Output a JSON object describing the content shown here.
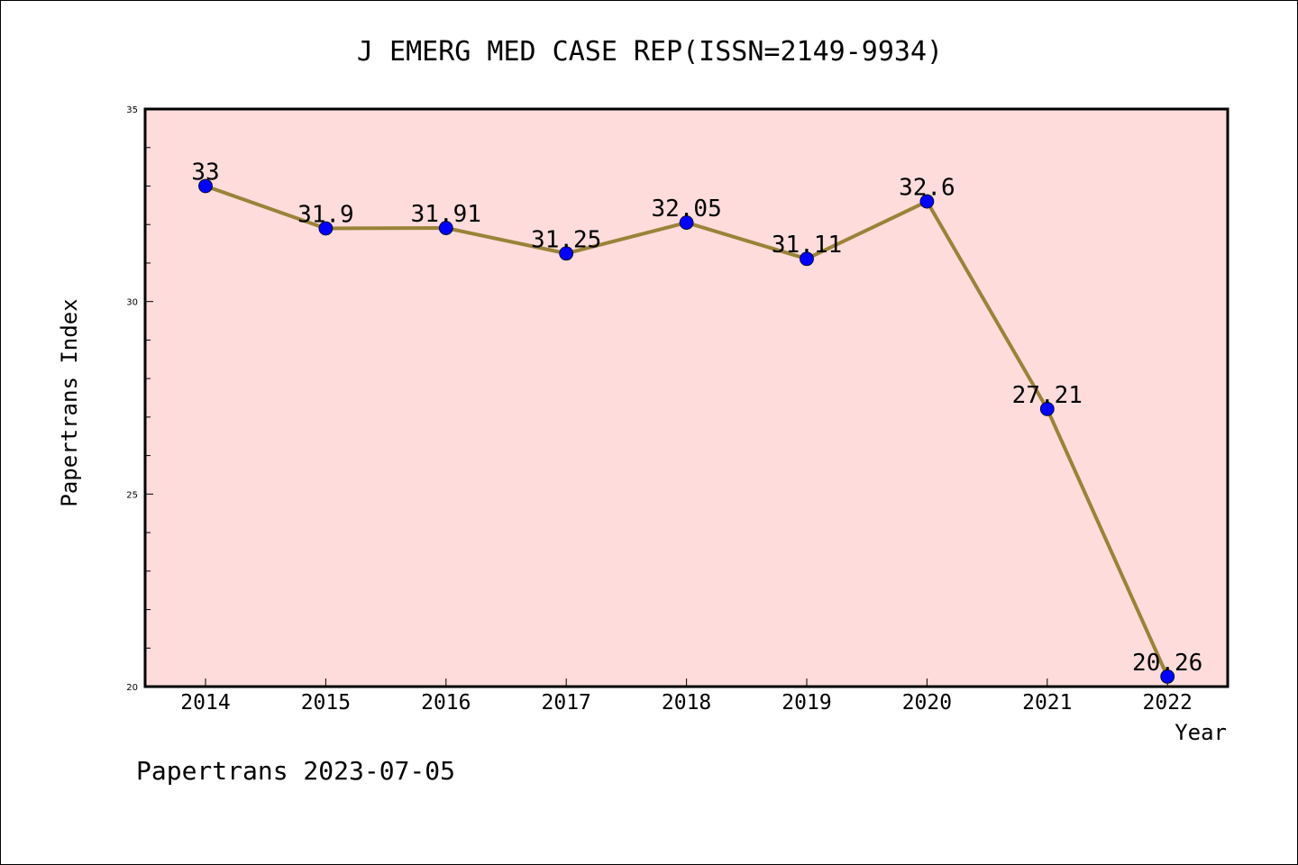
{
  "chart_data": {
    "type": "line",
    "title": "J EMERG MED CASE REP(ISSN=2149-9934)",
    "xlabel": "Year",
    "ylabel": "Papertrans Index",
    "x": [
      "2014",
      "2015",
      "2016",
      "2017",
      "2018",
      "2019",
      "2020",
      "2021",
      "2022"
    ],
    "series": [
      {
        "values": [
          33,
          31.9,
          31.91,
          31.25,
          32.05,
          31.11,
          32.6,
          27.21,
          20.26
        ],
        "labels": [
          "33",
          "31.9",
          "31.91",
          "31.25",
          "32.05",
          "31.11",
          "32.6",
          "27.21",
          "20.26"
        ],
        "line_color": "#9a8238",
        "marker_color": "#0000ff"
      }
    ],
    "ylim": [
      20,
      35
    ],
    "y_ticks": [
      "20",
      "25",
      "30",
      "35"
    ],
    "plot_background": "#fddcdb",
    "grid": false,
    "legend": "none"
  },
  "footer": {
    "text": "Papertrans 2023-07-05"
  }
}
